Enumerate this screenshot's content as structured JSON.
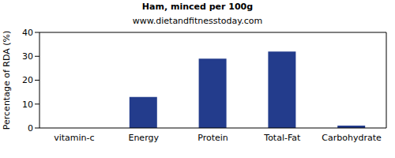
{
  "chart_data": {
    "type": "bar",
    "title": "Ham, minced per 100g",
    "subtitle": "www.dietandfitnesstoday.com",
    "y_label": "Percentage of RDA (%)",
    "categories": [
      "vitamin-c",
      "Energy",
      "Protein",
      "Total-Fat",
      "Carbohydrate"
    ],
    "values": [
      0,
      13,
      29,
      32,
      1
    ],
    "color": "#233c8c",
    "ylim": [
      0,
      40
    ],
    "yticks": [
      0,
      10,
      20,
      30,
      40
    ],
    "grid": false
  }
}
